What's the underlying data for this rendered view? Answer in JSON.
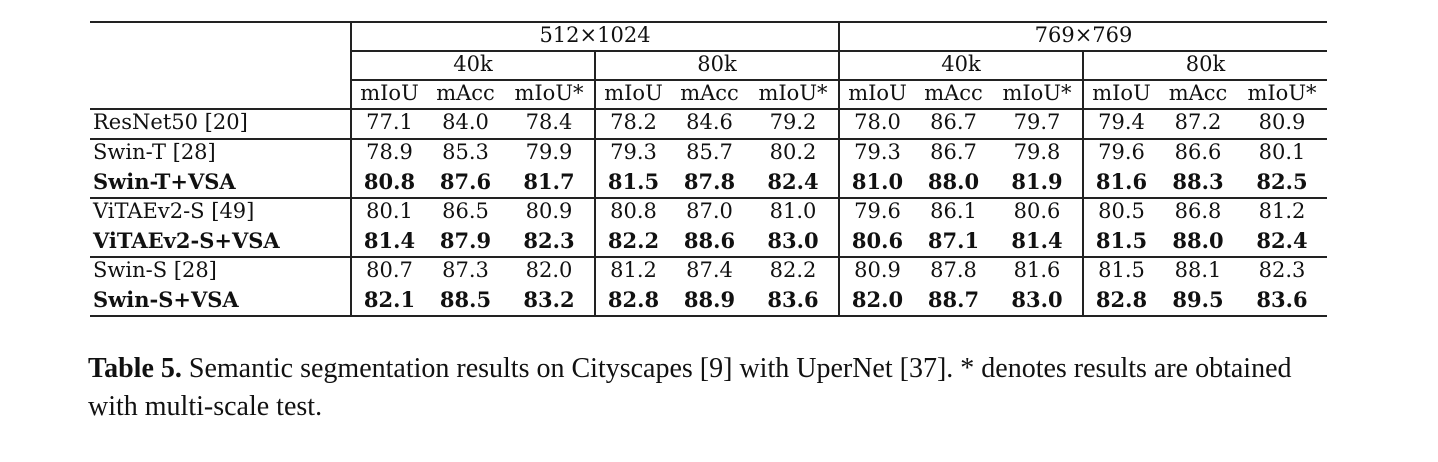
{
  "table": {
    "headers": {
      "resolutions": [
        "512×1024",
        "769×769"
      ],
      "iterations": [
        "40k",
        "80k",
        "40k",
        "80k"
      ],
      "metrics": [
        "mIoU",
        "mAcc",
        "mIoU*"
      ]
    },
    "rows": [
      {
        "method": "ResNet50 [20]",
        "bold": false,
        "values": [
          "77.1",
          "84.0",
          "78.4",
          "78.2",
          "84.6",
          "79.2",
          "78.0",
          "86.7",
          "79.7",
          "79.4",
          "87.2",
          "80.9"
        ]
      },
      {
        "method": "Swin-T [28]",
        "bold": false,
        "values": [
          "78.9",
          "85.3",
          "79.9",
          "79.3",
          "85.7",
          "80.2",
          "79.3",
          "86.7",
          "79.8",
          "79.6",
          "86.6",
          "80.1"
        ]
      },
      {
        "method": "Swin-T+VSA",
        "bold": true,
        "values": [
          "80.8",
          "87.6",
          "81.7",
          "81.5",
          "87.8",
          "82.4",
          "81.0",
          "88.0",
          "81.9",
          "81.6",
          "88.3",
          "82.5"
        ]
      },
      {
        "method": "ViTAEv2-S [49]",
        "bold": false,
        "values": [
          "80.1",
          "86.5",
          "80.9",
          "80.8",
          "87.0",
          "81.0",
          "79.6",
          "86.1",
          "80.6",
          "80.5",
          "86.8",
          "81.2"
        ]
      },
      {
        "method": "ViTAEv2-S+VSA",
        "bold": true,
        "values": [
          "81.4",
          "87.9",
          "82.3",
          "82.2",
          "88.6",
          "83.0",
          "80.6",
          "87.1",
          "81.4",
          "81.5",
          "88.0",
          "82.4"
        ]
      },
      {
        "method": "Swin-S [28]",
        "bold": false,
        "values": [
          "80.7",
          "87.3",
          "82.0",
          "81.2",
          "87.4",
          "82.2",
          "80.9",
          "87.8",
          "81.6",
          "81.5",
          "88.1",
          "82.3"
        ]
      },
      {
        "method": "Swin-S+VSA",
        "bold": true,
        "values": [
          "82.1",
          "88.5",
          "83.2",
          "82.8",
          "88.9",
          "83.6",
          "82.0",
          "88.7",
          "83.0",
          "82.8",
          "89.5",
          "83.6"
        ]
      }
    ]
  },
  "caption": {
    "label": "Table 5.",
    "text": " Semantic segmentation results on Cityscapes [9] with UperNet [37]. * denotes results are obtained with multi-scale test."
  }
}
